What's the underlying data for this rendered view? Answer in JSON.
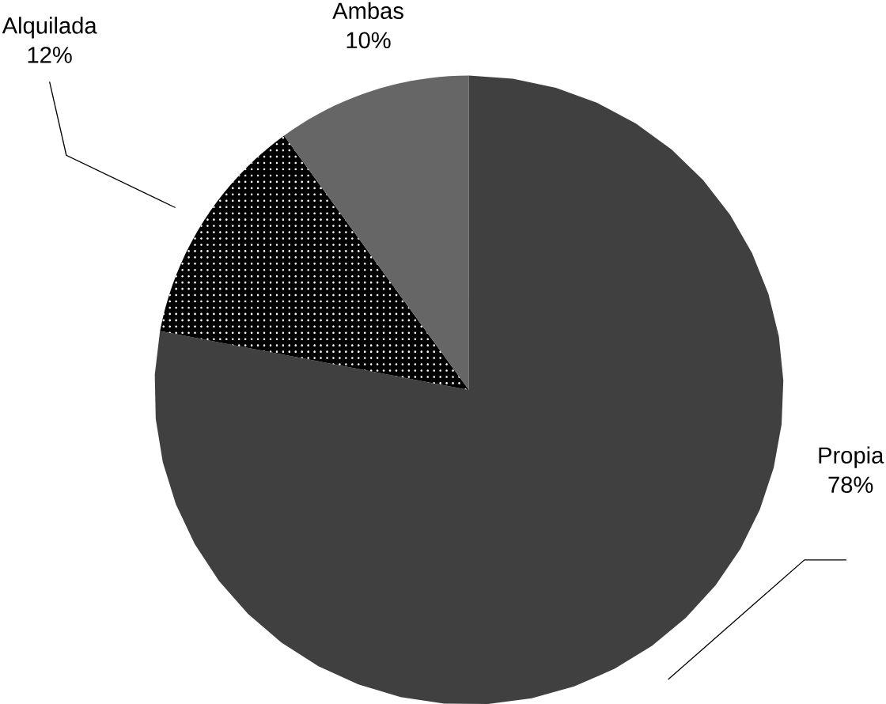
{
  "chart_data": {
    "type": "pie",
    "categories": [
      "Propia",
      "Alquilada",
      "Ambas"
    ],
    "values": [
      78,
      12,
      10
    ],
    "value_labels": [
      "78%",
      "12%",
      "10%"
    ],
    "colors": [
      "#404040",
      "#000000",
      "#666666"
    ]
  }
}
